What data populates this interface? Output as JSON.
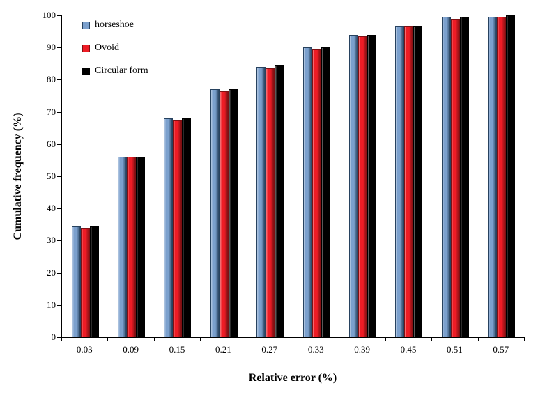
{
  "chart_data": {
    "type": "bar",
    "title": "",
    "xlabel": "Relative error (%)",
    "ylabel": "Cumulative frequency (%)",
    "ylim": [
      0,
      100
    ],
    "ytick_step": 10,
    "grid": false,
    "legend_position": "top-left-inside",
    "categories": [
      "0.03",
      "0.09",
      "0.15",
      "0.21",
      "0.27",
      "0.33",
      "0.39",
      "0.45",
      "0.51",
      "0.57"
    ],
    "series": [
      {
        "name": "horseshoe",
        "fill": "#7BA0CD",
        "border": "#27425F",
        "values": [
          34.5,
          56,
          68,
          77,
          84,
          90,
          94,
          96.5,
          99.5,
          99.5
        ]
      },
      {
        "name": "Ovoid",
        "fill": "#EE1C25",
        "border": "#7E1013",
        "values": [
          34,
          56,
          67.5,
          76.5,
          83.5,
          89.5,
          93.5,
          96.5,
          99,
          99.5
        ]
      },
      {
        "name": "Circular form",
        "fill": "#000000",
        "border": "#000000",
        "values": [
          34.5,
          56,
          68,
          77,
          84.5,
          90,
          94,
          96.5,
          99.5,
          100
        ]
      }
    ]
  }
}
